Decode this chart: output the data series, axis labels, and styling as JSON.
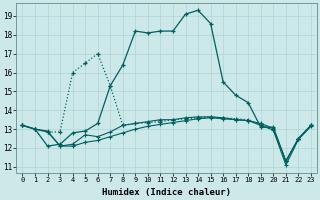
{
  "xlabel": "Humidex (Indice chaleur)",
  "xlim": [
    -0.5,
    23.5
  ],
  "ylim": [
    10.7,
    19.7
  ],
  "xticks": [
    0,
    1,
    2,
    3,
    4,
    5,
    6,
    7,
    8,
    9,
    10,
    11,
    12,
    13,
    14,
    15,
    16,
    17,
    18,
    19,
    20,
    21,
    22,
    23
  ],
  "yticks": [
    11,
    12,
    13,
    14,
    15,
    16,
    17,
    18,
    19
  ],
  "bg_color": "#cce8e8",
  "line_color": "#006060",
  "grid_color": "#b0d4d4",
  "line1_x": [
    0,
    1,
    2,
    3,
    4,
    5,
    6,
    7,
    8,
    9,
    10,
    11,
    12,
    13,
    14,
    15,
    16,
    17,
    18,
    19,
    20,
    21,
    22,
    23
  ],
  "line1_y": [
    13.2,
    13.0,
    12.85,
    12.85,
    16.0,
    16.5,
    17.0,
    15.3,
    13.2,
    13.3,
    13.35,
    13.4,
    13.5,
    13.55,
    13.6,
    13.65,
    13.6,
    13.55,
    13.5,
    13.2,
    13.0,
    11.3,
    12.5,
    13.2
  ],
  "line2_x": [
    0,
    1,
    2,
    3,
    4,
    5,
    6,
    7,
    8,
    9,
    10,
    11,
    12,
    13,
    14,
    15,
    16,
    17,
    18,
    19,
    20,
    21,
    22,
    23
  ],
  "line2_y": [
    13.2,
    13.0,
    12.1,
    12.2,
    12.8,
    12.9,
    13.3,
    15.3,
    16.4,
    18.2,
    18.1,
    18.2,
    18.2,
    19.1,
    19.3,
    18.6,
    15.5,
    14.8,
    14.4,
    13.1,
    13.1,
    11.3,
    12.5,
    13.2
  ],
  "line3_x": [
    0,
    1,
    2,
    3,
    4,
    5,
    6,
    7,
    8,
    9,
    10,
    11,
    12,
    13,
    14,
    15,
    16,
    17,
    18,
    19,
    20,
    21,
    22,
    23
  ],
  "line3_y": [
    13.2,
    13.0,
    12.85,
    12.1,
    12.2,
    12.7,
    12.6,
    12.85,
    13.2,
    13.3,
    13.4,
    13.5,
    13.5,
    13.6,
    13.65,
    13.65,
    13.6,
    13.5,
    13.45,
    13.3,
    13.05,
    11.3,
    12.5,
    13.2
  ],
  "line4_x": [
    0,
    1,
    2,
    3,
    4,
    5,
    6,
    7,
    8,
    9,
    10,
    11,
    12,
    13,
    14,
    15,
    16,
    17,
    18,
    19,
    20,
    21,
    22,
    23
  ],
  "line4_y": [
    13.2,
    13.0,
    12.9,
    12.1,
    12.1,
    12.3,
    12.4,
    12.6,
    12.8,
    13.0,
    13.15,
    13.25,
    13.35,
    13.45,
    13.55,
    13.6,
    13.55,
    13.5,
    13.45,
    13.2,
    12.95,
    11.1,
    12.45,
    13.15
  ]
}
